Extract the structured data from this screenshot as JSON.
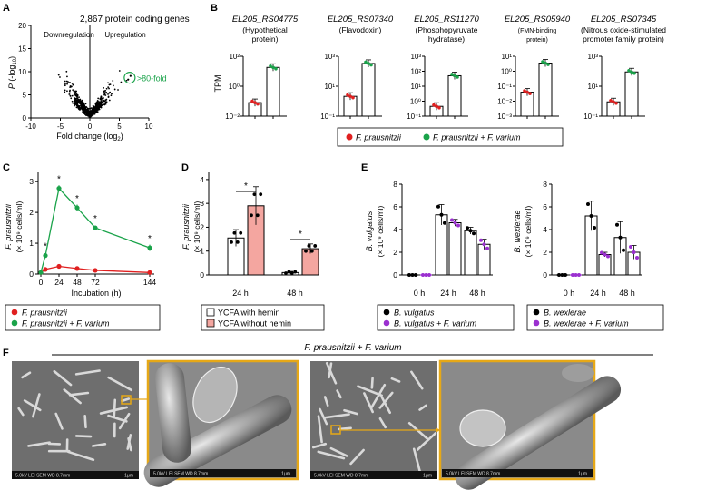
{
  "panel_labels": {
    "a": "A",
    "b": "B",
    "c": "C",
    "d": "D",
    "e": "E",
    "f": "F"
  },
  "panel_a": {
    "title": "2,867 protein coding genes",
    "ylabel_prefix": "P",
    "ylabel_rest": " (-log",
    "ylabel_sub": "10",
    "ylabel_close": ")",
    "down_label": "Downregulation",
    "up_label": "Upregulation",
    "fold_annot": ">80-fold",
    "xlabel": "Fold change (log",
    "xlabel_sub": "2",
    "xlabel_close": ")",
    "xticks": [
      "-10",
      "-5",
      "0",
      "5",
      "10"
    ],
    "yticks": [
      "0",
      "5",
      "10",
      "15",
      "20"
    ],
    "dot_color": "#000000",
    "highlight_color": "#1aa34a"
  },
  "panel_b": {
    "ylabel": "TPM",
    "subpanels": [
      {
        "gene": "EL205_RS04775",
        "desc1": "(Hypothetical",
        "desc2": "protein)",
        "desc_small": false,
        "yticks": [
          "10⁻²",
          "10⁰",
          "10²"
        ],
        "values": [
          0.08,
          18
        ]
      },
      {
        "gene": "EL205_RS07340",
        "desc1": "(Flavodoxin)",
        "desc2": "",
        "desc_small": false,
        "yticks": [
          "10⁻¹",
          "10¹",
          "10³"
        ],
        "values": [
          2.1,
          330
        ]
      },
      {
        "gene": "EL205_RS11270",
        "desc1": "(Phosphopyruvate",
        "desc2": "hydratase)",
        "desc_small": false,
        "yticks": [
          "10⁻¹",
          "10⁰",
          "10¹",
          "10²",
          "10³"
        ],
        "values": [
          0.45,
          50
        ]
      },
      {
        "gene": "EL205_RS05940",
        "desc1": "(FMN-binding",
        "desc2": "protein)",
        "desc_small": true,
        "yticks": [
          "10⁻³",
          "10⁻²",
          "10⁻¹",
          "10⁰",
          "10¹"
        ],
        "values": [
          0.04,
          3.5
        ]
      },
      {
        "gene": "EL205_RS07345",
        "desc1": "(Nitrous oxide-stimulated",
        "desc2": "promoter family protein)",
        "desc_small": false,
        "yticks": [
          "10⁻¹",
          "10¹",
          "10³"
        ],
        "values": [
          0.9,
          90
        ]
      }
    ],
    "legend": [
      {
        "label": "F. prausnitzii",
        "color": "#e02020"
      },
      {
        "label": "F. prausnitzii + F. varium",
        "color": "#1aa34a"
      }
    ]
  },
  "chart_data": [
    {
      "type": "line",
      "panel": "C",
      "ylabel": "F. prausnitzii",
      "ylabel2": "(× 10⁹ cells/ml)",
      "xlabel": "Incubation (h)",
      "xticks": [
        "0",
        "24",
        "48",
        "72",
        "144"
      ],
      "yticks": [
        "0",
        "1",
        "2",
        "3"
      ],
      "x": [
        0,
        6,
        24,
        48,
        72,
        144
      ],
      "ylim": [
        0,
        3.3
      ],
      "series": [
        {
          "name": "F. prausnitzii",
          "color": "#e02020",
          "values": [
            0.05,
            0.15,
            0.25,
            0.18,
            0.12,
            0.05
          ]
        },
        {
          "name": "F. prausnitzii + F. varium",
          "color": "#1aa34a",
          "values": [
            0.05,
            0.6,
            2.78,
            2.15,
            1.5,
            0.85
          ]
        }
      ],
      "sig_marks": [
        "*",
        "*",
        "*",
        "*",
        "*"
      ]
    },
    {
      "type": "bar",
      "panel": "D",
      "ylabel": "F. prausnitzii",
      "ylabel2": "(× 10⁹ cells/ml)",
      "categories": [
        "24 h",
        "48 h"
      ],
      "yticks": [
        "0",
        "1",
        "2",
        "3",
        "4"
      ],
      "ylim": [
        0,
        4.3
      ],
      "series": [
        {
          "name": "YCFA with hemin",
          "color": "#ffffff",
          "values": [
            1.55,
            0.1
          ]
        },
        {
          "name": "YCFA without hemin",
          "color": "#f4a6a0",
          "values": [
            2.9,
            1.1
          ]
        }
      ],
      "sig_marks": [
        "*",
        "*"
      ]
    },
    {
      "type": "bar",
      "panel": "E-left",
      "ylabel": "B. vulgatus",
      "ylabel2": "(× 10⁹ cells/ml)",
      "categories": [
        "0 h",
        "24 h",
        "48 h"
      ],
      "yticks": [
        "0",
        "2",
        "4",
        "6",
        "8"
      ],
      "ylim": [
        0,
        8
      ],
      "series": [
        {
          "name": "B. vulgatus",
          "color": "#000000",
          "values": [
            0,
            5.3,
            3.9
          ]
        },
        {
          "name": "B. vulgatus + F. varium",
          "color": "#9b30d0",
          "values": [
            0,
            4.6,
            2.7
          ]
        }
      ]
    },
    {
      "type": "bar",
      "panel": "E-right",
      "ylabel": "B. wexlerae",
      "ylabel2": "(× 10⁹ cells/ml)",
      "categories": [
        "0 h",
        "24 h",
        "48 h"
      ],
      "yticks": [
        "0",
        "2",
        "4",
        "6",
        "8"
      ],
      "ylim": [
        0,
        8
      ],
      "series": [
        {
          "name": "B. wexlerae",
          "color": "#000000",
          "values": [
            0,
            5.2,
            3.3
          ]
        },
        {
          "name": "B. wexlerae + F. varium",
          "color": "#9b30d0",
          "values": [
            0,
            1.8,
            2.0
          ]
        }
      ]
    }
  ],
  "panel_f": {
    "title": "F. prausnitzii + F. varium",
    "frame_color": "#e6a817",
    "bar_texts": [
      "5.0kV  LEI  SEM  WD 8.7mm",
      "1μm",
      "5.0kV  LEI  SEM  WD 8.7mm",
      "1μm"
    ]
  }
}
